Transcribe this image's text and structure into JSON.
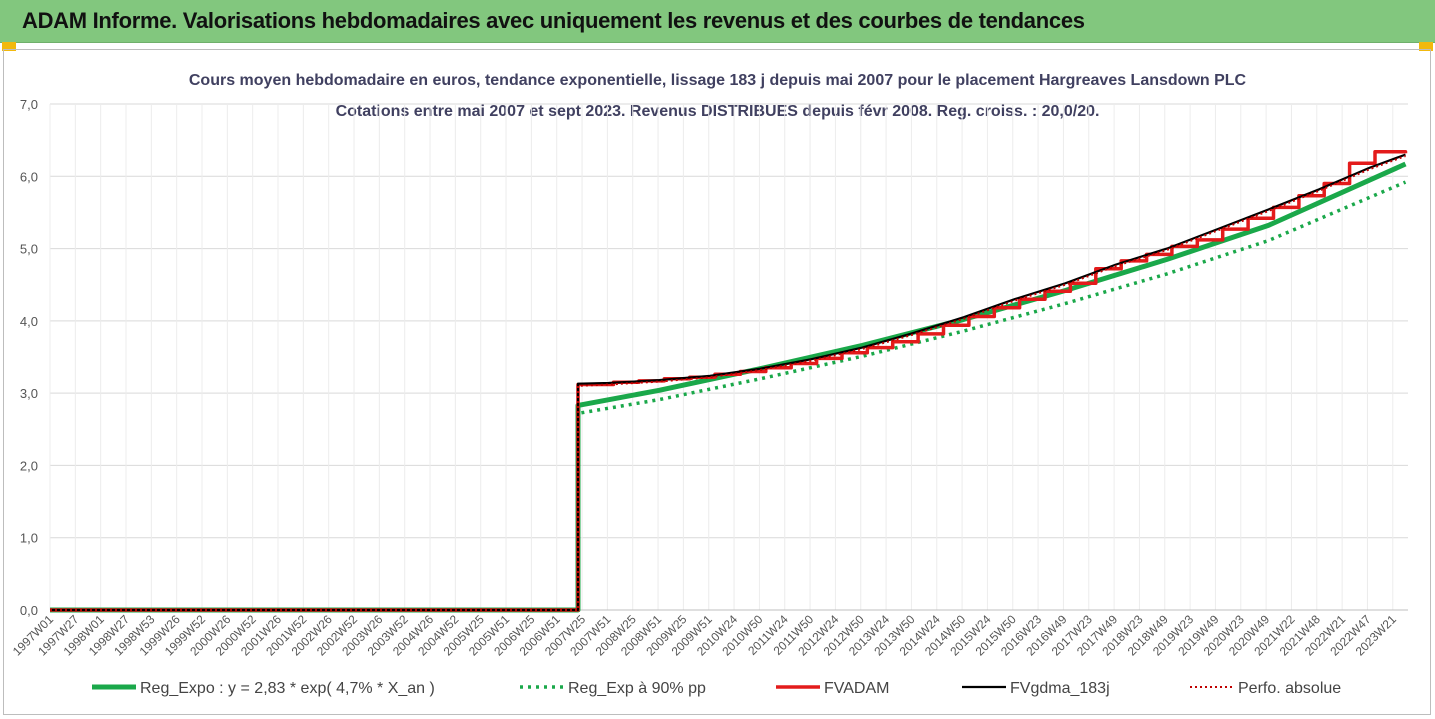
{
  "header": {
    "title": "ADAM Informe. Valorisations hebdomadaires avec uniquement les revenus et des courbes de tendances"
  },
  "colors": {
    "header_bg": "#82c77e",
    "accent_corner": "#f2b90d",
    "reg_expo": "#1aa84a",
    "reg_exp90": "#1aa84a",
    "fvadam": "#e31b1b",
    "fvgdma": "#000000",
    "perfo": "#c00000"
  },
  "chart_data": {
    "type": "line",
    "title": "Cours moyen hebdomadaire en euros, tendance exponentielle, lissage 183 j depuis mai 2007 pour le placement Hargreaves Lansdown PLC",
    "subtitle": "Cotations entre mai 2007 et sept 2023. Revenus DISTRIBUES depuis févr 2008. Reg. croiss. : 20,0/20.",
    "xlabel": "",
    "ylabel": "",
    "ylim": [
      0,
      7
    ],
    "yticks": [
      "0,0",
      "1,0",
      "2,0",
      "3,0",
      "4,0",
      "5,0",
      "6,0",
      "7,0"
    ],
    "xlim": [
      1997.0,
      2023.75
    ],
    "grid": true,
    "legend_position": "bottom",
    "x_tick_labels": [
      "1997W01",
      "1997W27",
      "1998W01",
      "1998W27",
      "1998W53",
      "1999W26",
      "1999W52",
      "2000W26",
      "2000W52",
      "2001W26",
      "2001W52",
      "2002W26",
      "2002W52",
      "2003W26",
      "2003W52",
      "2004W26",
      "2004W52",
      "2005W25",
      "2005W51",
      "2006W25",
      "2006W51",
      "2007W25",
      "2007W51",
      "2008W25",
      "2008W51",
      "2009W25",
      "2009W51",
      "2010W24",
      "2010W50",
      "2011W24",
      "2011W50",
      "2012W24",
      "2012W50",
      "2013W24",
      "2013W50",
      "2014W24",
      "2014W50",
      "2015W24",
      "2015W50",
      "2016W23",
      "2016W49",
      "2017W23",
      "2017W49",
      "2018W23",
      "2018W49",
      "2019W23",
      "2019W49",
      "2020W23",
      "2020W49",
      "2021W22",
      "2021W48",
      "2022W21",
      "2022W47",
      "2023W21"
    ],
    "series": [
      {
        "name": "Reg_Expo : y = 2,83 * exp( 4,7% * X_an )",
        "style": "solid",
        "x": [
          1997.0,
          2007.4,
          2007.4,
          2009,
          2011,
          2013,
          2015,
          2017,
          2019,
          2021,
          2023.7
        ],
        "values": [
          0,
          0,
          2.83,
          3.04,
          3.34,
          3.66,
          4.02,
          4.42,
          4.85,
          5.32,
          6.17
        ]
      },
      {
        "name": "Reg_Exp à 90% pp",
        "style": "dotted",
        "x": [
          1997.0,
          2007.4,
          2007.4,
          2009,
          2011,
          2013,
          2015,
          2017,
          2019,
          2021,
          2023.7
        ],
        "values": [
          0,
          0,
          2.72,
          2.91,
          3.2,
          3.51,
          3.86,
          4.24,
          4.65,
          5.11,
          5.92
        ]
      },
      {
        "name": "FVADAM",
        "style": "step",
        "x": [
          1997.0,
          2007.4,
          2007.4,
          2008.1,
          2008.6,
          2009.1,
          2009.6,
          2010.1,
          2010.6,
          2011.1,
          2011.6,
          2012.1,
          2012.6,
          2013.1,
          2013.6,
          2014.1,
          2014.6,
          2015.1,
          2015.6,
          2016.1,
          2016.6,
          2017.1,
          2017.6,
          2018.1,
          2018.6,
          2019.1,
          2019.6,
          2020.1,
          2020.6,
          2021.1,
          2021.6,
          2022.1,
          2022.6,
          2023.1,
          2023.7
        ],
        "values": [
          0,
          0,
          3.12,
          3.15,
          3.17,
          3.2,
          3.22,
          3.26,
          3.3,
          3.35,
          3.41,
          3.48,
          3.56,
          3.63,
          3.71,
          3.82,
          3.94,
          4.06,
          4.18,
          4.3,
          4.41,
          4.52,
          4.72,
          4.83,
          4.92,
          5.03,
          5.12,
          5.27,
          5.42,
          5.57,
          5.73,
          5.9,
          6.18,
          6.34,
          6.32
        ]
      },
      {
        "name": "FVgdma_183j",
        "style": "solid",
        "x": [
          1997.0,
          2007.4,
          2007.4,
          2008,
          2009,
          2010,
          2011,
          2012,
          2013,
          2014,
          2015,
          2016,
          2017,
          2018,
          2019,
          2020,
          2021,
          2022,
          2023,
          2023.7
        ],
        "values": [
          0,
          0,
          3.13,
          3.14,
          3.18,
          3.24,
          3.34,
          3.47,
          3.63,
          3.83,
          4.05,
          4.3,
          4.52,
          4.78,
          5.0,
          5.27,
          5.54,
          5.82,
          6.12,
          6.3
        ]
      },
      {
        "name": "Perfo. absolue",
        "style": "dotted",
        "x": [
          1997.0,
          2007.4,
          2007.4,
          2008,
          2009,
          2010,
          2011,
          2012,
          2013,
          2014,
          2015,
          2016,
          2017,
          2018,
          2019,
          2020,
          2021,
          2022,
          2023,
          2023.7
        ],
        "values": [
          0,
          0,
          3.1,
          3.12,
          3.16,
          3.22,
          3.32,
          3.45,
          3.61,
          3.81,
          4.03,
          4.28,
          4.5,
          4.76,
          4.98,
          5.25,
          5.52,
          5.8,
          6.1,
          6.28
        ]
      }
    ]
  }
}
